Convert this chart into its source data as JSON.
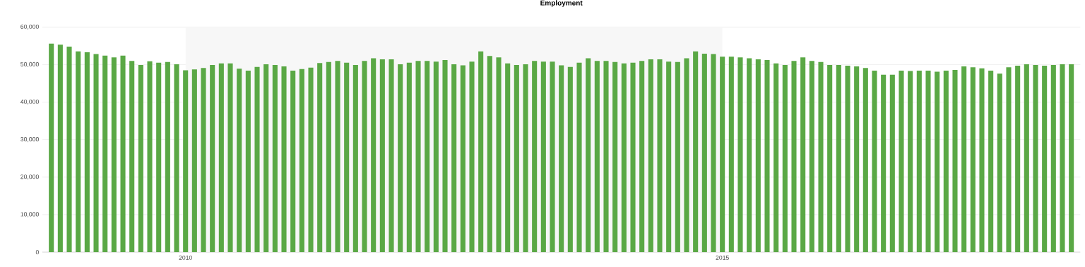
{
  "chart_data": {
    "type": "bar",
    "title": "Employment",
    "x": [
      "2008-10",
      "2008-11",
      "2008-12",
      "2009-01",
      "2009-02",
      "2009-03",
      "2009-04",
      "2009-05",
      "2009-06",
      "2009-07",
      "2009-08",
      "2009-09",
      "2009-10",
      "2009-11",
      "2009-12",
      "2010-01",
      "2010-02",
      "2010-03",
      "2010-04",
      "2010-05",
      "2010-06",
      "2010-07",
      "2010-08",
      "2010-09",
      "2010-10",
      "2010-11",
      "2010-12",
      "2011-01",
      "2011-02",
      "2011-03",
      "2011-04",
      "2011-05",
      "2011-06",
      "2011-07",
      "2011-08",
      "2011-09",
      "2011-10",
      "2011-11",
      "2011-12",
      "2012-01",
      "2012-02",
      "2012-03",
      "2012-04",
      "2012-05",
      "2012-06",
      "2012-07",
      "2012-08",
      "2012-09",
      "2012-10",
      "2012-11",
      "2012-12",
      "2013-01",
      "2013-02",
      "2013-03",
      "2013-04",
      "2013-05",
      "2013-06",
      "2013-07",
      "2013-08",
      "2013-09",
      "2013-10",
      "2013-11",
      "2013-12",
      "2014-01",
      "2014-02",
      "2014-03",
      "2014-04",
      "2014-05",
      "2014-06",
      "2014-07",
      "2014-08",
      "2014-09",
      "2014-10",
      "2014-11",
      "2014-12",
      "2015-01",
      "2015-02",
      "2015-03",
      "2015-04",
      "2015-05",
      "2015-06",
      "2015-07",
      "2015-08",
      "2015-09",
      "2015-10",
      "2015-11",
      "2015-12",
      "2016-01",
      "2016-02",
      "2016-03",
      "2016-04",
      "2016-05",
      "2016-06",
      "2016-07",
      "2016-08",
      "2016-09",
      "2016-10",
      "2016-11",
      "2016-12",
      "2017-01",
      "2017-02",
      "2017-03",
      "2017-04",
      "2017-05",
      "2017-06",
      "2017-07",
      "2017-08",
      "2017-09",
      "2017-10",
      "2017-11",
      "2017-12",
      "2018-01",
      "2018-02",
      "2018-03",
      "2018-04"
    ],
    "values": [
      55600,
      55300,
      54800,
      53500,
      53300,
      52800,
      52400,
      51900,
      52400,
      51000,
      49900,
      50900,
      50500,
      50700,
      50100,
      48500,
      48700,
      49100,
      49900,
      50300,
      50300,
      48900,
      48400,
      49400,
      50100,
      49900,
      49500,
      48400,
      48800,
      49200,
      50400,
      50700,
      51000,
      50500,
      49900,
      51000,
      51700,
      51400,
      51400,
      50100,
      50500,
      51000,
      51000,
      50800,
      51200,
      50100,
      49800,
      50800,
      53500,
      52300,
      51900,
      50300,
      49900,
      50100,
      51000,
      50800,
      50800,
      49800,
      49400,
      50500,
      51700,
      51000,
      51000,
      50700,
      50300,
      50500,
      51000,
      51400,
      51400,
      50800,
      50700,
      51700,
      53500,
      52900,
      52800,
      52100,
      52100,
      51900,
      51700,
      51400,
      51200,
      50300,
      49900,
      51000,
      51900,
      51000,
      50700,
      49900,
      49900,
      49700,
      49500,
      49100,
      48400,
      47300,
      47300,
      48400,
      48300,
      48400,
      48400,
      48100,
      48400,
      48600,
      49500,
      49300,
      49000,
      48400,
      47600,
      49300,
      49700,
      50100,
      49900,
      49700,
      49900,
      50100,
      50100
    ],
    "color": "#5aa845",
    "xlim": [
      "2008-09",
      "2018-05"
    ],
    "xticks": [
      {
        "value": "2010",
        "label": "2010"
      },
      {
        "value": "2015",
        "label": "2015"
      }
    ],
    "ylim": [
      0,
      60000
    ],
    "yticks": [
      {
        "value": 0,
        "label": "0"
      },
      {
        "value": 10000,
        "label": "10,000"
      },
      {
        "value": 20000,
        "label": "20,000"
      },
      {
        "value": 30000,
        "label": "30,000"
      },
      {
        "value": 40000,
        "label": "40,000"
      },
      {
        "value": 50000,
        "label": "50,000"
      },
      {
        "value": 60000,
        "label": "60,000"
      }
    ],
    "bands": [
      {
        "axis": "x",
        "from": "2010",
        "to": "2015",
        "color": "#f7f7f7"
      }
    ],
    "grid": "y"
  }
}
